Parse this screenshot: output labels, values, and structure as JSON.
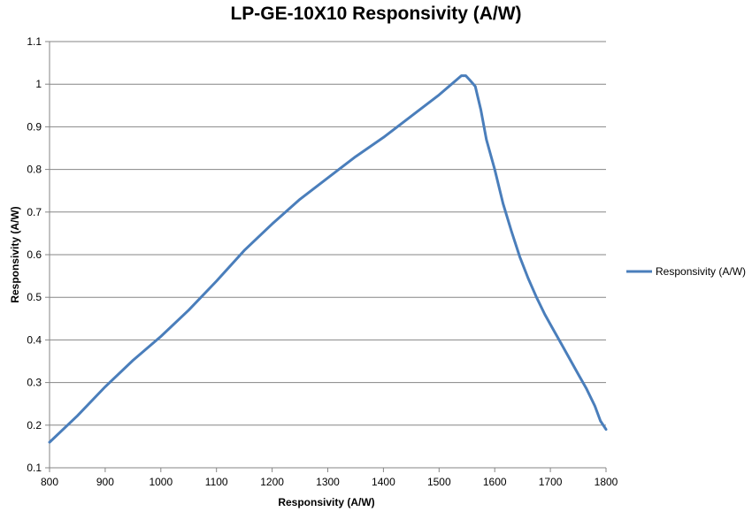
{
  "chart_data": {
    "type": "line",
    "title": "LP-GE-10X10 Responsivity (A/W)",
    "xlabel": "Responsivity (A/W)",
    "ylabel": "Responsivity (A/W)",
    "xlim": [
      800,
      1800
    ],
    "ylim": [
      0.1,
      1.1
    ],
    "xticks": [
      "800",
      "900",
      "1000",
      "1100",
      "1200",
      "1300",
      "1400",
      "1500",
      "1600",
      "1700",
      "1800"
    ],
    "yticks": [
      "0.1",
      "0.2",
      "0.3",
      "0.4",
      "0.5",
      "0.6",
      "0.7",
      "0.8",
      "0.9",
      "1",
      "1.1"
    ],
    "grid": "horizontal",
    "legend_position": "right",
    "series": [
      {
        "name": "Responsivity (A/W)",
        "color": "#4a7ebb",
        "x": [
          800,
          850,
          900,
          950,
          1000,
          1050,
          1100,
          1150,
          1200,
          1250,
          1300,
          1350,
          1400,
          1450,
          1500,
          1540,
          1548,
          1555,
          1565,
          1575,
          1585,
          1600,
          1615,
          1630,
          1645,
          1660,
          1675,
          1690,
          1705,
          1720,
          1735,
          1750,
          1765,
          1780,
          1790,
          1800
        ],
        "y": [
          0.16,
          0.222,
          0.29,
          0.352,
          0.408,
          0.47,
          0.538,
          0.61,
          0.672,
          0.73,
          0.78,
          0.83,
          0.875,
          0.925,
          0.975,
          1.02,
          1.02,
          1.01,
          0.995,
          0.94,
          0.87,
          0.8,
          0.72,
          0.655,
          0.595,
          0.545,
          0.5,
          0.46,
          0.425,
          0.39,
          0.355,
          0.32,
          0.285,
          0.245,
          0.21,
          0.19
        ]
      }
    ]
  }
}
